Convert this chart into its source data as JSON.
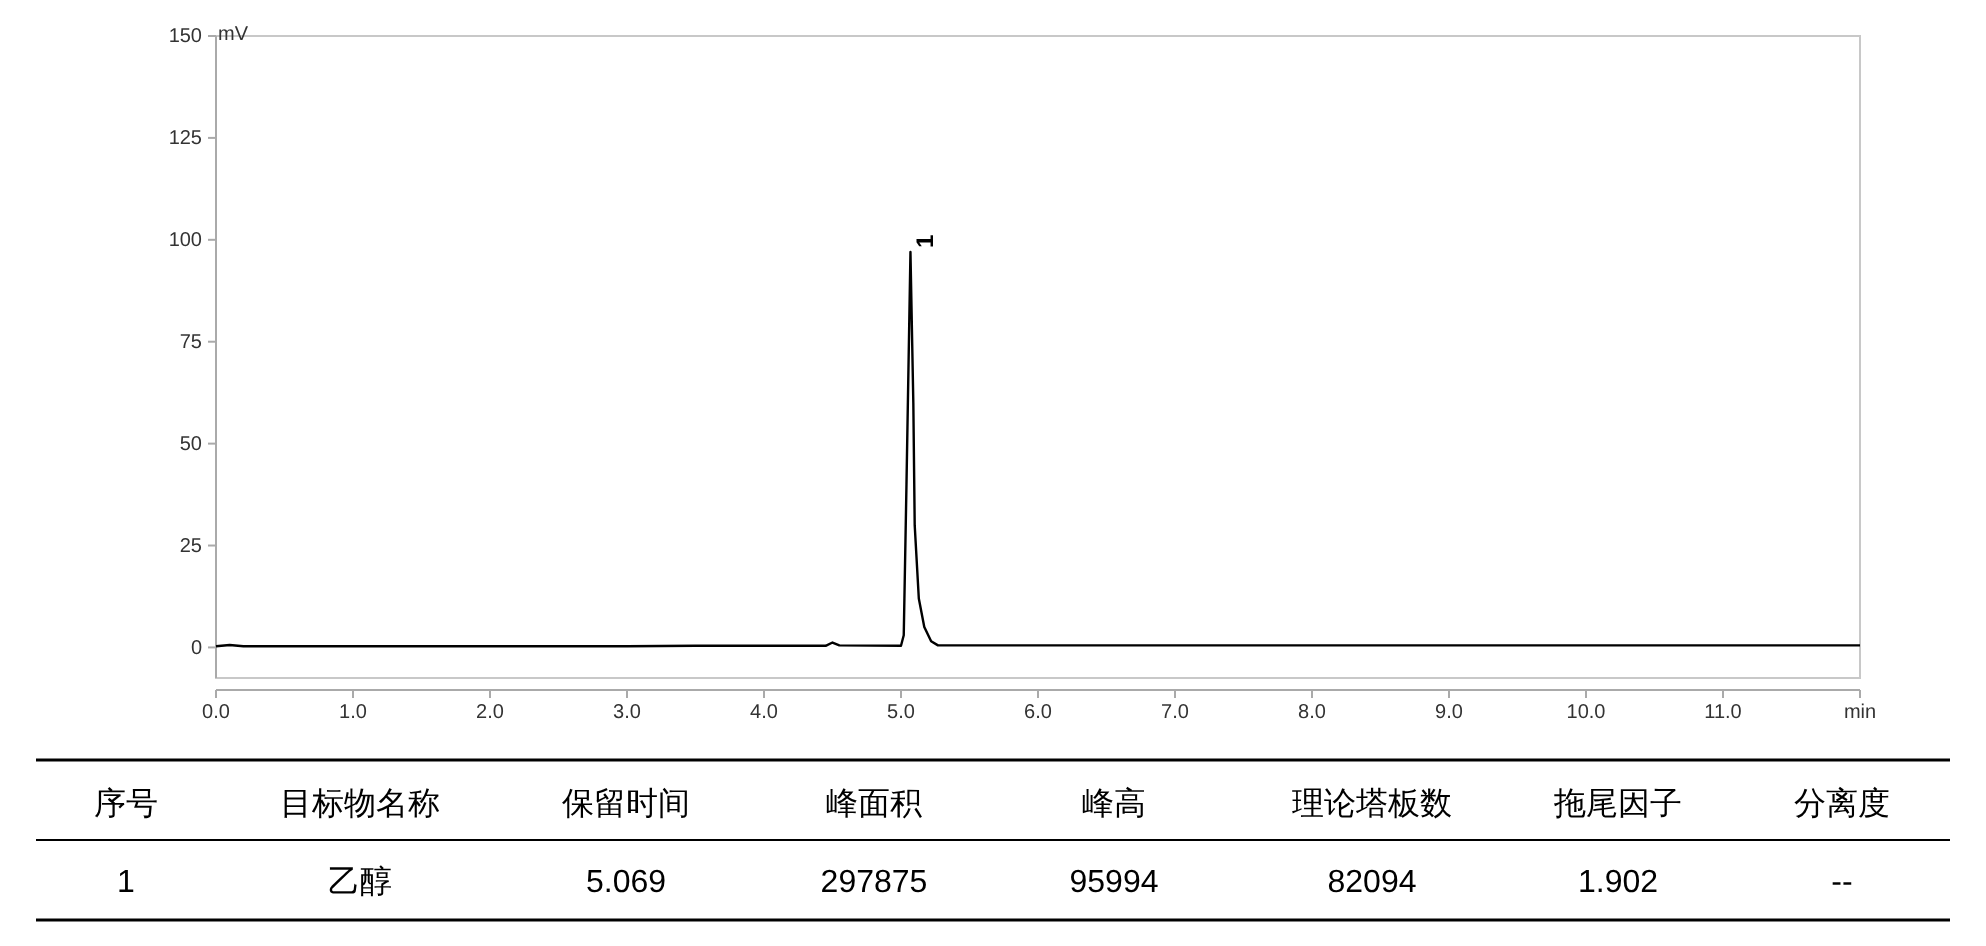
{
  "chart_data": [
    {
      "type": "line",
      "ylabel": "mV",
      "xlim": [
        0,
        12
      ],
      "ylim": [
        -7.5,
        150
      ],
      "xticks": [
        {
          "value": 0,
          "label": "0.0"
        },
        {
          "value": 1,
          "label": "1.0"
        },
        {
          "value": 2,
          "label": "2.0"
        },
        {
          "value": 3,
          "label": "3.0"
        },
        {
          "value": 4,
          "label": "4.0"
        },
        {
          "value": 5,
          "label": "5.0"
        },
        {
          "value": 6,
          "label": "6.0"
        },
        {
          "value": 7,
          "label": "7.0"
        },
        {
          "value": 8,
          "label": "8.0"
        },
        {
          "value": 9,
          "label": "9.0"
        },
        {
          "value": 10,
          "label": "10.0"
        },
        {
          "value": 11,
          "label": "11.0"
        },
        {
          "value": 12,
          "label": "min"
        }
      ],
      "yticks": [
        0,
        25,
        50,
        75,
        100,
        125,
        150
      ],
      "series": [
        {
          "color": "#000000",
          "x": [
            0,
            0.1,
            0.2,
            1,
            2,
            3,
            3.5,
            4,
            4.45,
            4.5,
            4.55,
            5,
            5.02,
            5.04,
            5.069,
            5.09,
            5.1,
            5.13,
            5.17,
            5.22,
            5.27,
            6,
            7,
            8,
            9,
            10,
            11,
            12
          ],
          "values": [
            0.3,
            0.6,
            0.3,
            0.3,
            0.3,
            0.3,
            0.4,
            0.4,
            0.4,
            1.2,
            0.5,
            0.4,
            3,
            40,
            97,
            60,
            30,
            12,
            5,
            1.5,
            0.5,
            0.5,
            0.5,
            0.5,
            0.5,
            0.5,
            0.5,
            0.5
          ]
        }
      ],
      "annotations": [
        {
          "text": "1",
          "x": 5.069,
          "y": 97
        }
      ],
      "grid": false
    },
    {
      "type": "other",
      "categories": [
        "序号",
        "目标物名称",
        "保留时间",
        "峰面积",
        "峰高",
        "理论塔板数",
        "拖尾因子",
        "分离度"
      ],
      "annotations": [
        "1",
        "乙醇",
        "5.069",
        "297875",
        "95994",
        "82094",
        "1.902",
        "--"
      ]
    }
  ]
}
